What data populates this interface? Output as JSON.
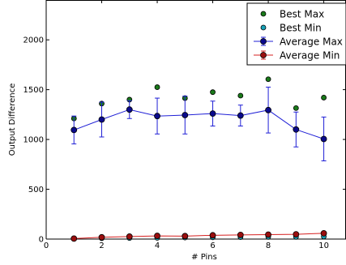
{
  "chart_data": {
    "type": "scatter",
    "xlabel": "# Pins",
    "ylabel": "Output Difference",
    "xlim": [
      0,
      10.8
    ],
    "ylim": [
      0,
      2400
    ],
    "xticks": [
      0,
      2,
      4,
      6,
      8,
      10
    ],
    "yticks": [
      0,
      500,
      1000,
      1500,
      2000
    ],
    "grid": false,
    "legend_position": "top-right",
    "series": [
      {
        "name": "Best Max",
        "kind": "points",
        "color": "#1a7a1a",
        "x": [
          1,
          2,
          3,
          4,
          5,
          6,
          7,
          8,
          9,
          10
        ],
        "y": [
          1210,
          1360,
          1400,
          1525,
          1415,
          1475,
          1440,
          1605,
          1315,
          1420
        ]
      },
      {
        "name": "Best Min",
        "kind": "points",
        "color": "#17a2b8",
        "x": [
          1,
          2,
          3,
          4,
          5,
          6,
          7,
          8,
          9,
          10
        ],
        "y": [
          2,
          8,
          10,
          12,
          15,
          18,
          20,
          22,
          22,
          25
        ]
      },
      {
        "name": "Average Max",
        "kind": "line-errorbar",
        "color": "#1f1fd6",
        "marker_color": "#0a0a8c",
        "x": [
          1,
          2,
          3,
          4,
          5,
          6,
          7,
          8,
          9,
          10
        ],
        "y": [
          1095,
          1200,
          1300,
          1235,
          1245,
          1260,
          1240,
          1295,
          1100,
          1005
        ],
        "yerr": [
          140,
          175,
          90,
          180,
          190,
          125,
          105,
          230,
          175,
          220
        ]
      },
      {
        "name": "Average Min",
        "kind": "line-errorbar",
        "color": "#d62020",
        "marker_color": "#9a0e0e",
        "x": [
          1,
          2,
          3,
          4,
          5,
          6,
          7,
          8,
          9,
          10
        ],
        "y": [
          5,
          18,
          25,
          32,
          30,
          38,
          42,
          45,
          48,
          58
        ],
        "yerr": [
          3,
          6,
          6,
          8,
          8,
          8,
          9,
          10,
          10,
          12
        ]
      }
    ]
  }
}
